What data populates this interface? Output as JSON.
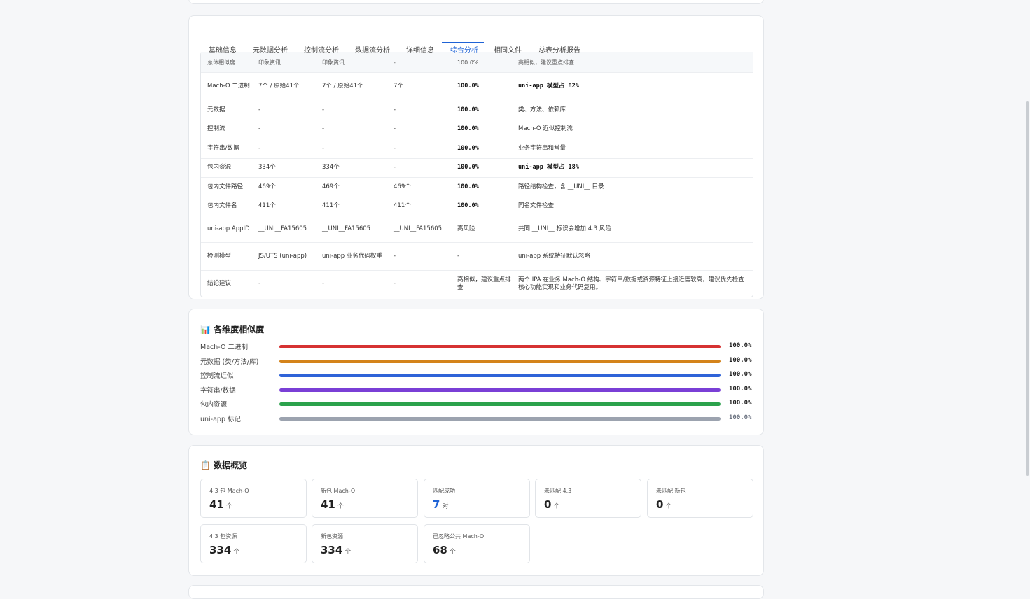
{
  "tabs": [
    "基础信息",
    "元数据分析",
    "控制流分析",
    "数据流分析",
    "详细信息",
    "综合分析",
    "相同文件",
    "总表分析报告"
  ],
  "active_tab": 5,
  "table": {
    "header": [
      "总体相似度",
      "印象资讯",
      "印象资讯",
      "-",
      "100.0%",
      "高相似，建议重点排查"
    ],
    "rows": [
      [
        "Mach-O 二进制",
        "7个 / 原始41个",
        "7个 / 原始41个",
        "7个",
        "100.0%",
        "uni-app 模型占 82%"
      ],
      [
        "元数据",
        "-",
        "-",
        "-",
        "100.0%",
        "类、方法、依赖库"
      ],
      [
        "控制流",
        "-",
        "-",
        "-",
        "100.0%",
        "Mach-O 近似控制流"
      ],
      [
        "字符串/数据",
        "-",
        "-",
        "-",
        "100.0%",
        "业务字符串和常量"
      ],
      [
        "包内资源",
        "334个",
        "334个",
        "-",
        "100.0%",
        "uni-app 模型占 18%"
      ],
      [
        "包内文件路径",
        "469个",
        "469个",
        "469个",
        "100.0%",
        "路径结构检查，含 __UNI__ 目录"
      ],
      [
        "包内文件名",
        "411个",
        "411个",
        "411个",
        "100.0%",
        "同名文件检查"
      ],
      [
        "uni-app AppID",
        "__UNI__FA15605",
        "__UNI__FA15605",
        "__UNI__FA15605",
        "高风险",
        "共同 __UNI__ 标识会增加 4.3 风险"
      ],
      [
        "检测模型",
        "JS/UTS (uni-app)",
        "uni-app 业务代码权重",
        "-",
        "-",
        "uni-app 系统特征默认忽略"
      ],
      [
        "结论建议",
        "-",
        "-",
        "-",
        "高相似，建议重点排查",
        "两个 IPA 在业务 Mach-O 结构、字符串/数据或资源特征上接近度较高，建议优先检查核心功能实现和业务代码复用。"
      ]
    ]
  },
  "similarity": {
    "title": "📊 各维度相似度",
    "xlim": [
      0,
      100
    ],
    "items": [
      {
        "label": "Mach-O 二进制",
        "value": 100,
        "value_label": "100.0%",
        "color": "#d63232"
      },
      {
        "label": "元数据 (类/方法/库)",
        "value": 100,
        "value_label": "100.0%",
        "color": "#d4831a"
      },
      {
        "label": "控制流近似",
        "value": 100,
        "value_label": "100.0%",
        "color": "#2f63d8"
      },
      {
        "label": "字符串/数据",
        "value": 100,
        "value_label": "100.0%",
        "color": "#7a3fd6"
      },
      {
        "label": "包内资源",
        "value": 100,
        "value_label": "100.0%",
        "color": "#2ba24c"
      },
      {
        "label": "uni-app 标记",
        "value": 100,
        "value_label": "100.0%",
        "color": "#9ca3af"
      }
    ]
  },
  "overview": {
    "title": "📋 数据概览",
    "stats": [
      {
        "label": "4.3 包 Mach-O",
        "value": 41,
        "unit": "个"
      },
      {
        "label": "新包 Mach-O",
        "value": 41,
        "unit": "个"
      },
      {
        "label": "匹配成功",
        "value": 7,
        "unit": "对",
        "color": "#1f63d6"
      },
      {
        "label": "未匹配 4.3",
        "value": 0,
        "unit": "个"
      },
      {
        "label": "未匹配 新包",
        "value": 0,
        "unit": "个"
      },
      {
        "label": "4.3 包资源",
        "value": 334,
        "unit": "个"
      },
      {
        "label": "新包资源",
        "value": 334,
        "unit": "个"
      },
      {
        "label": "已忽略公共 Mach-O",
        "value": 68,
        "unit": "个"
      }
    ]
  }
}
